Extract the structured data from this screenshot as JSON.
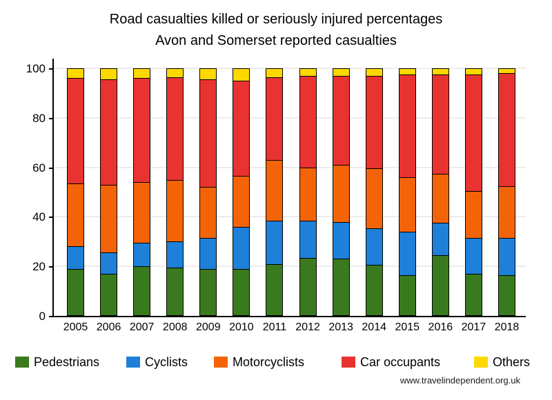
{
  "header": {
    "title": "Road casualties killed or seriously injured percentages",
    "subtitle": "Avon and Somerset reported casualties"
  },
  "footer": {
    "watermark": "www.travelindependent.org.uk"
  },
  "chart_data": {
    "type": "bar",
    "variant": "stacked-percentage",
    "title": "Road casualties killed or seriously injured percentages",
    "subtitle": "Avon and Somerset reported casualties",
    "categories": [
      "2005",
      "2006",
      "2007",
      "2008",
      "2009",
      "2010",
      "2011",
      "2012",
      "2013",
      "2014",
      "2015",
      "2016",
      "2017",
      "2018"
    ],
    "series": [
      {
        "name": "Pedestrians",
        "color": "#3a7a1e",
        "values": [
          19,
          17,
          20,
          19.5,
          19,
          19,
          21,
          23.5,
          23,
          20.5,
          16.5,
          24.5,
          17,
          16.5
        ]
      },
      {
        "name": "Cyclists",
        "color": "#1e80d8",
        "values": [
          9,
          8.5,
          9.5,
          10.5,
          12.5,
          17,
          17.5,
          15,
          15,
          15,
          17.5,
          13,
          14.5,
          15
        ]
      },
      {
        "name": "Motorcyclists",
        "color": "#f36408",
        "values": [
          25.5,
          27.5,
          24.5,
          25,
          20.5,
          20.5,
          24.5,
          21.5,
          23,
          24,
          22,
          20,
          19,
          21
        ]
      },
      {
        "name": "Car occupants",
        "color": "#e93330",
        "values": [
          42.5,
          42.5,
          42,
          41.5,
          43.5,
          38.5,
          33.5,
          37,
          36,
          37.5,
          41.5,
          40,
          47,
          45.5
        ]
      },
      {
        "name": "Others",
        "color": "#ffd800",
        "values": [
          4,
          4.5,
          4,
          3.5,
          4.5,
          5,
          3.5,
          3,
          3,
          3,
          2.5,
          2.5,
          2.5,
          2
        ]
      }
    ],
    "xlabel": "",
    "ylabel": "",
    "ylim": [
      0,
      100
    ],
    "y_ticks": [
      0,
      20,
      40,
      60,
      80,
      100
    ],
    "grid": "horizontal",
    "bar_outline_color": "#000000",
    "legend_position": "bottom"
  }
}
